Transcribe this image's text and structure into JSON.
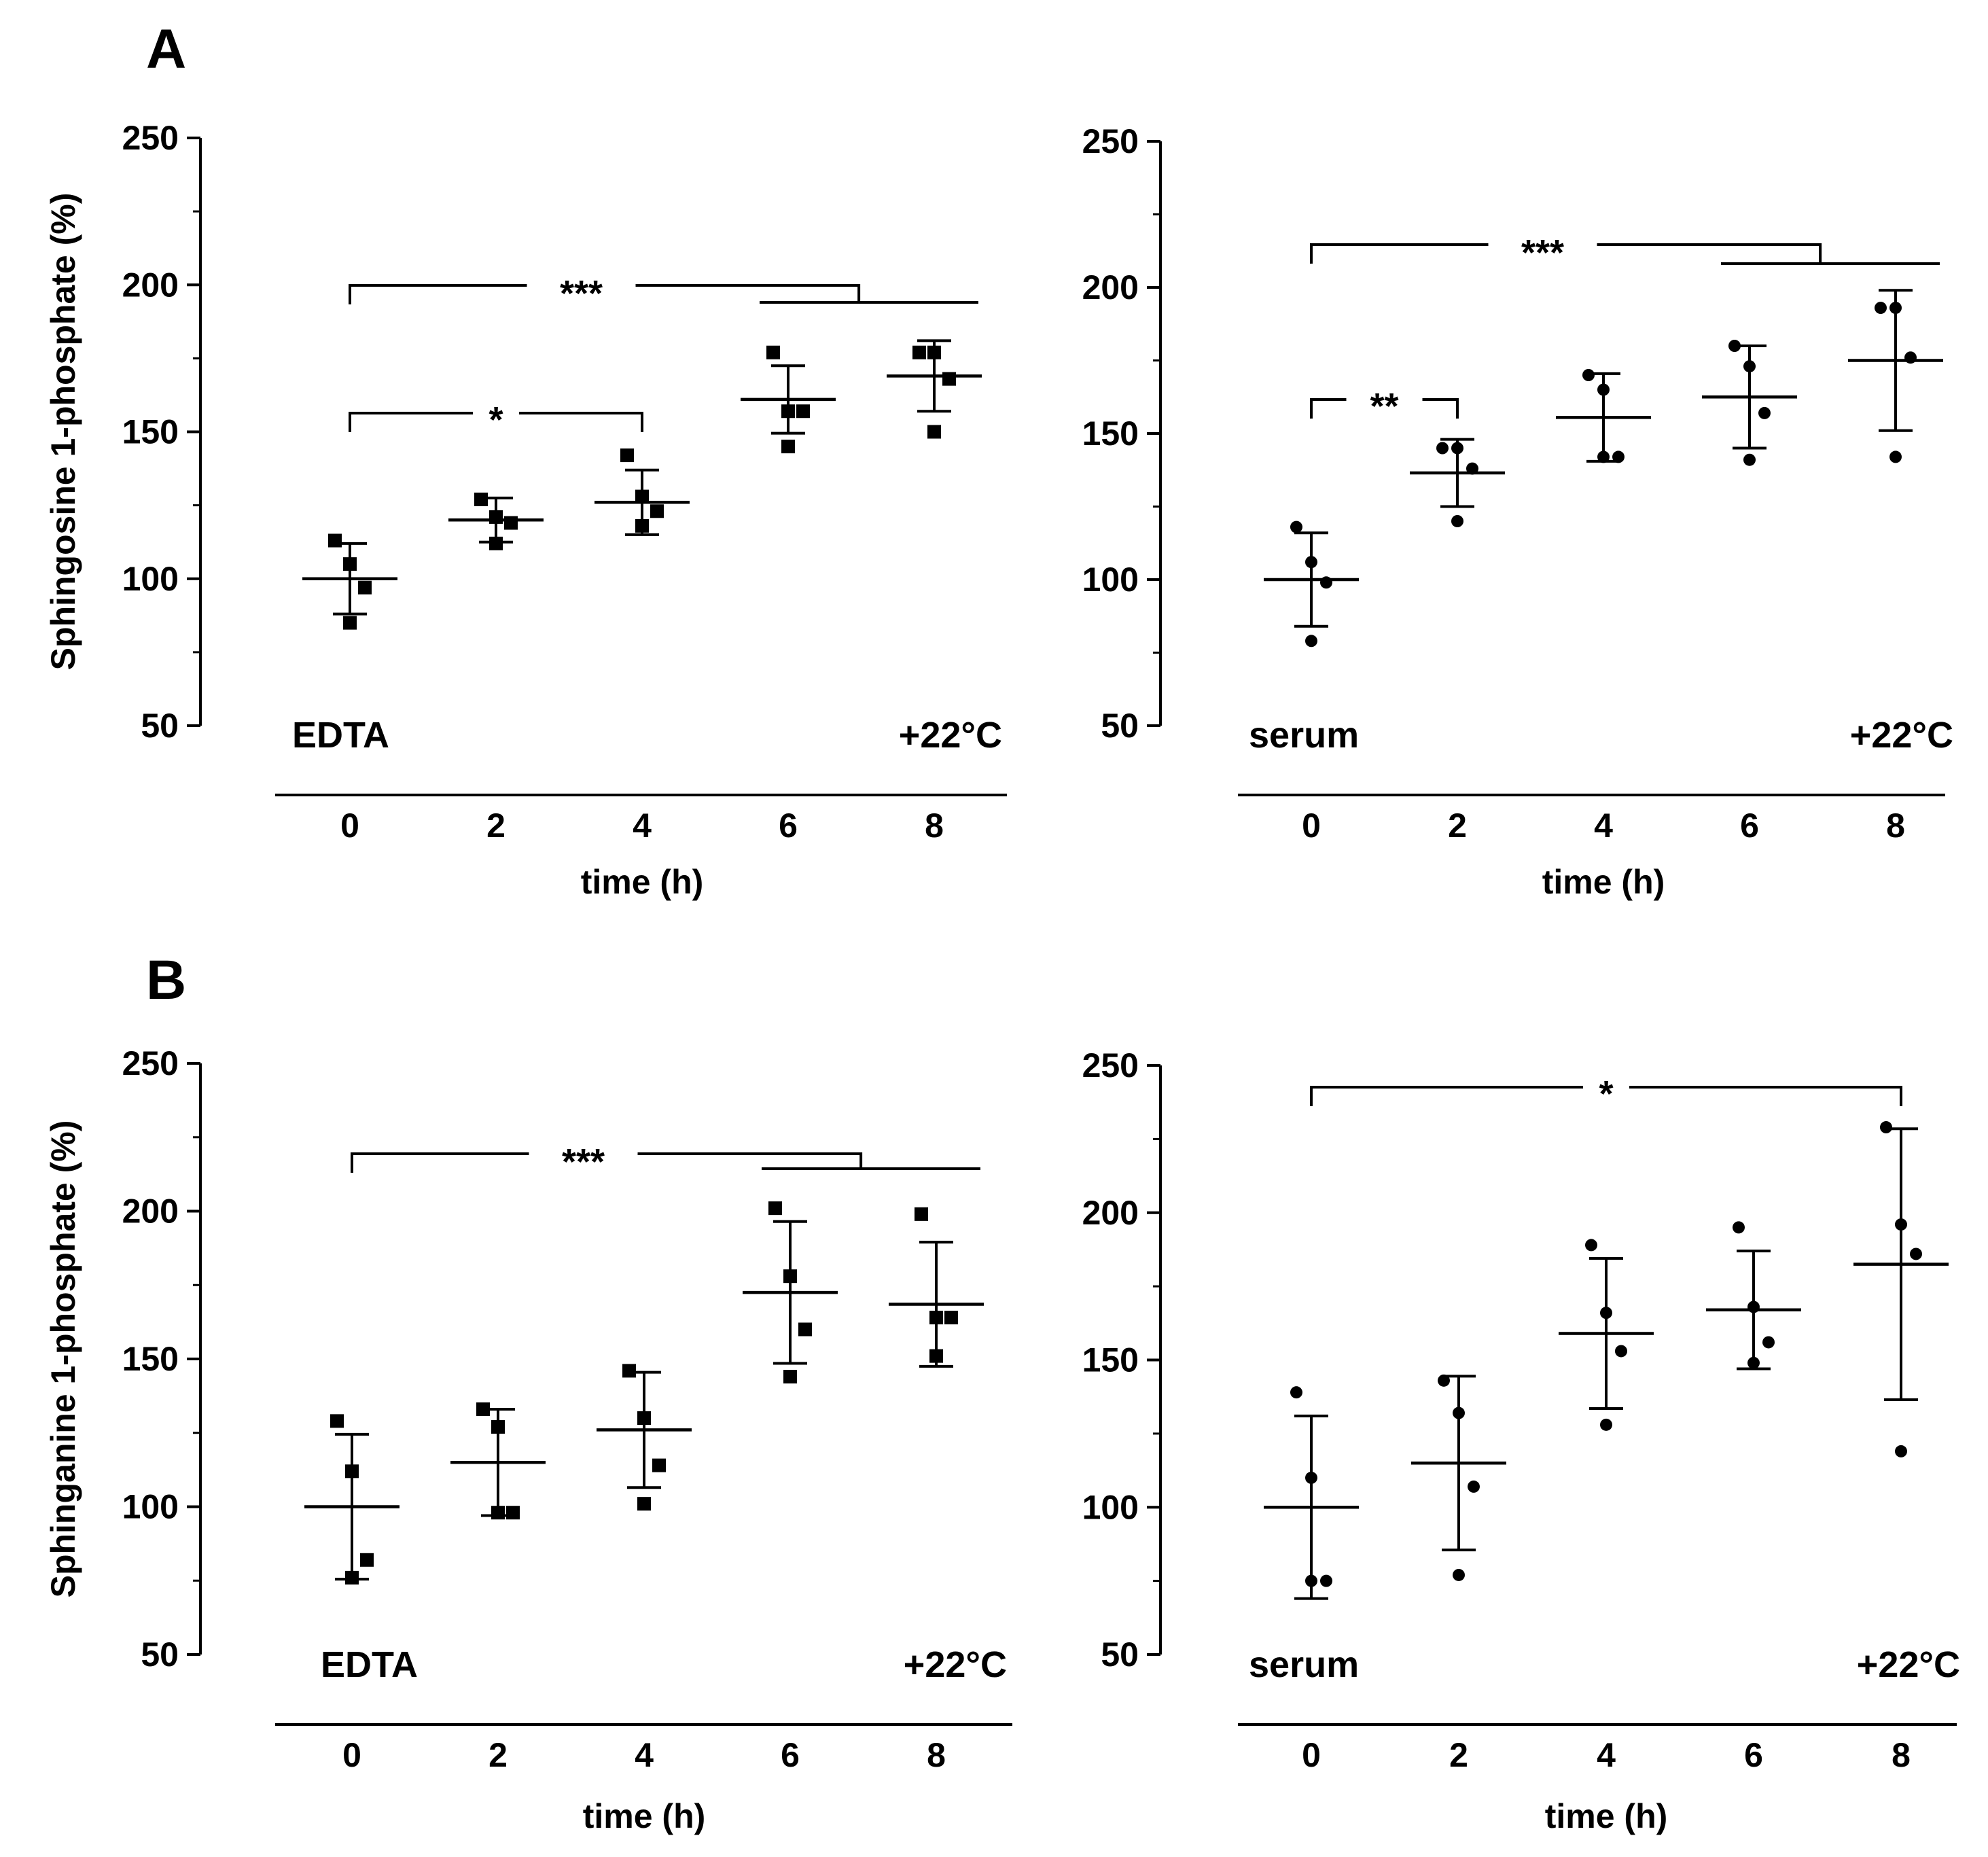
{
  "figure": {
    "panel_labels": [
      "A",
      "B"
    ],
    "y_labels": [
      "Sphingosine 1-phosphate (%)",
      "Sphinganine 1-phosphate (%)"
    ]
  },
  "chart_data": [
    {
      "type": "scatter",
      "panel": "A",
      "condition": "EDTA",
      "temperature": "+22°C",
      "marker": "square",
      "xlabel": "time (h)",
      "ylabel": "Sphingosine 1-phosphate (%)",
      "categories": [
        "0",
        "2",
        "4",
        "6",
        "8"
      ],
      "yticks": [
        "50",
        "100",
        "150",
        "200",
        "250"
      ],
      "ylim": [
        50,
        250
      ],
      "points": [
        [
          113,
          105,
          97,
          85
        ],
        [
          127,
          121,
          119,
          112
        ],
        [
          142,
          128,
          123,
          118
        ],
        [
          177,
          157,
          157,
          145
        ],
        [
          177,
          177,
          168,
          150
        ]
      ],
      "means": [
        100,
        120,
        126,
        161,
        169
      ],
      "sd": [
        12,
        7.5,
        11,
        11.5,
        12
      ],
      "significance": [
        {
          "label": "***",
          "from": 0,
          "to": [
            6,
            8
          ],
          "y": 200
        },
        {
          "label": "*",
          "from": 0,
          "to": [
            4
          ],
          "y": 155
        }
      ]
    },
    {
      "type": "scatter",
      "panel": "A",
      "condition": "serum",
      "temperature": "+22°C",
      "marker": "circle",
      "xlabel": "time (h)",
      "ylabel": "",
      "categories": [
        "0",
        "2",
        "4",
        "6",
        "8"
      ],
      "yticks": [
        "50",
        "100",
        "150",
        "200",
        "250"
      ],
      "ylim": [
        50,
        250
      ],
      "points": [
        [
          118,
          106,
          99,
          79
        ],
        [
          145,
          145,
          138,
          120
        ],
        [
          170,
          165,
          142,
          142
        ],
        [
          180,
          173,
          157,
          141
        ],
        [
          193,
          193,
          176,
          142
        ]
      ],
      "means": [
        100,
        136.5,
        155.5,
        162.5,
        175
      ],
      "sd": [
        16,
        11.5,
        15,
        17.5,
        24
      ],
      "significance": [
        {
          "label": "***",
          "from": 0,
          "to": [
            6,
            8
          ],
          "y": 214
        },
        {
          "label": "**",
          "from": 0,
          "to": [
            2
          ],
          "y": 161
        }
      ]
    },
    {
      "type": "scatter",
      "panel": "B",
      "condition": "EDTA",
      "temperature": "+22°C",
      "marker": "square",
      "xlabel": "time (h)",
      "ylabel": "Sphinganine 1-phosphate (%)",
      "categories": [
        "0",
        "2",
        "4",
        "6",
        "8"
      ],
      "yticks": [
        "50",
        "100",
        "150",
        "200",
        "250"
      ],
      "ylim": [
        50,
        250
      ],
      "points": [
        [
          129,
          112,
          82,
          76
        ],
        [
          133,
          127,
          98,
          98
        ],
        [
          146,
          130,
          114,
          101
        ],
        [
          201,
          178,
          160,
          144
        ],
        [
          199,
          164,
          164,
          151
        ]
      ],
      "means": [
        100,
        115,
        126,
        172.5,
        168.5
      ],
      "sd": [
        24.5,
        18,
        19.5,
        24,
        21
      ],
      "significance": [
        {
          "label": "***",
          "from": 0,
          "to": [
            6,
            8
          ],
          "y": 220
        }
      ]
    },
    {
      "type": "scatter",
      "panel": "B",
      "condition": "serum",
      "temperature": "+22°C",
      "marker": "circle",
      "xlabel": "time (h)",
      "ylabel": "",
      "categories": [
        "0",
        "2",
        "4",
        "6",
        "8"
      ],
      "yticks": [
        "50",
        "100",
        "150",
        "200",
        "250"
      ],
      "ylim": [
        50,
        250
      ],
      "points": [
        [
          139,
          110,
          75,
          75
        ],
        [
          143,
          132,
          107,
          77
        ],
        [
          189,
          166,
          153,
          128
        ],
        [
          195,
          168,
          156,
          149
        ],
        [
          229,
          196,
          186,
          119
        ]
      ],
      "means": [
        100,
        115,
        159,
        167,
        182.5
      ],
      "sd": [
        31,
        29.5,
        25.5,
        20,
        46
      ],
      "significance": [
        {
          "label": "*",
          "from": 0,
          "to": [
            8
          ],
          "y": 240
        }
      ]
    }
  ]
}
